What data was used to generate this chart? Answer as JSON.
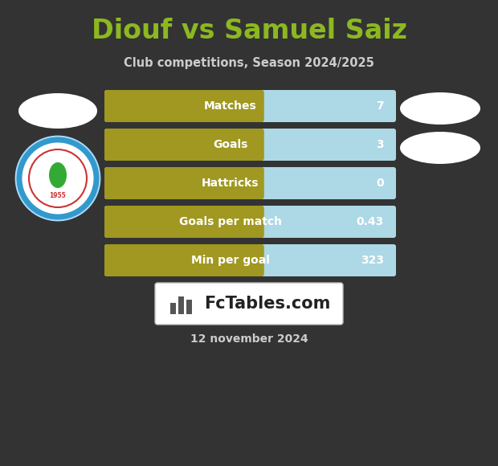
{
  "title": "Diouf vs Samuel Saiz",
  "subtitle": "Club competitions, Season 2024/2025",
  "date_label": "12 november 2024",
  "background_color": "#333333",
  "title_color": "#8cb820",
  "subtitle_color": "#cccccc",
  "date_color": "#cccccc",
  "bar_left_color": "#a09820",
  "bar_right_color": "#add8e6",
  "bar_text_color": "#ffffff",
  "stats": [
    {
      "label": "Matches",
      "value": "7"
    },
    {
      "label": "Goals",
      "value": "3"
    },
    {
      "label": "Hattricks",
      "value": "0"
    },
    {
      "label": "Goals per match",
      "value": "0.43"
    },
    {
      "label": "Min per goal",
      "value": "323"
    }
  ],
  "left_oval_color": "#ffffff",
  "right_oval_color": "#ffffff",
  "fctables_box_color": "#ffffff",
  "fctables_box_text_color": "#222222",
  "fctables_accent_color": "#555555"
}
